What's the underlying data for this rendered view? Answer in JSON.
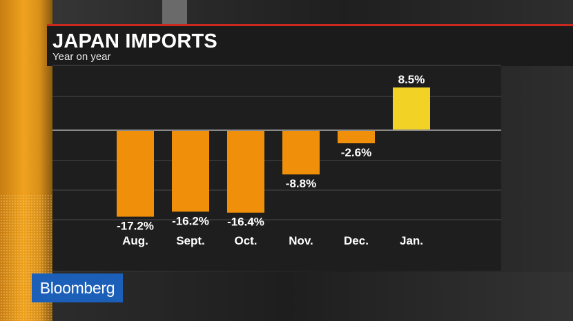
{
  "header": {
    "title": "JAPAN IMPORTS",
    "subtitle": "Year on year"
  },
  "branding": {
    "logo_text": "Bloomberg"
  },
  "colors": {
    "negative_bar": "#f0900a",
    "positive_bar": "#f2d224",
    "gridline": "#4a4a4a",
    "baseline": "#8a8a8a",
    "label": "#ffffff",
    "accent_line": "#c8281e",
    "logo_background": "#1c5fb8"
  },
  "chart_data": {
    "type": "bar",
    "title": "JAPAN IMPORTS",
    "subtitle": "Year on year",
    "categories": [
      "Aug.",
      "Sept.",
      "Oct.",
      "Nov.",
      "Dec.",
      "Jan."
    ],
    "values": [
      -17.2,
      -16.2,
      -16.4,
      -8.8,
      -2.6,
      8.5
    ],
    "value_labels": [
      "-17.2%",
      "-16.2%",
      "-16.4%",
      "-8.8%",
      "-2.6%",
      "8.5%"
    ],
    "ylim": [
      -18,
      12
    ],
    "grid": true,
    "legend": "none"
  }
}
